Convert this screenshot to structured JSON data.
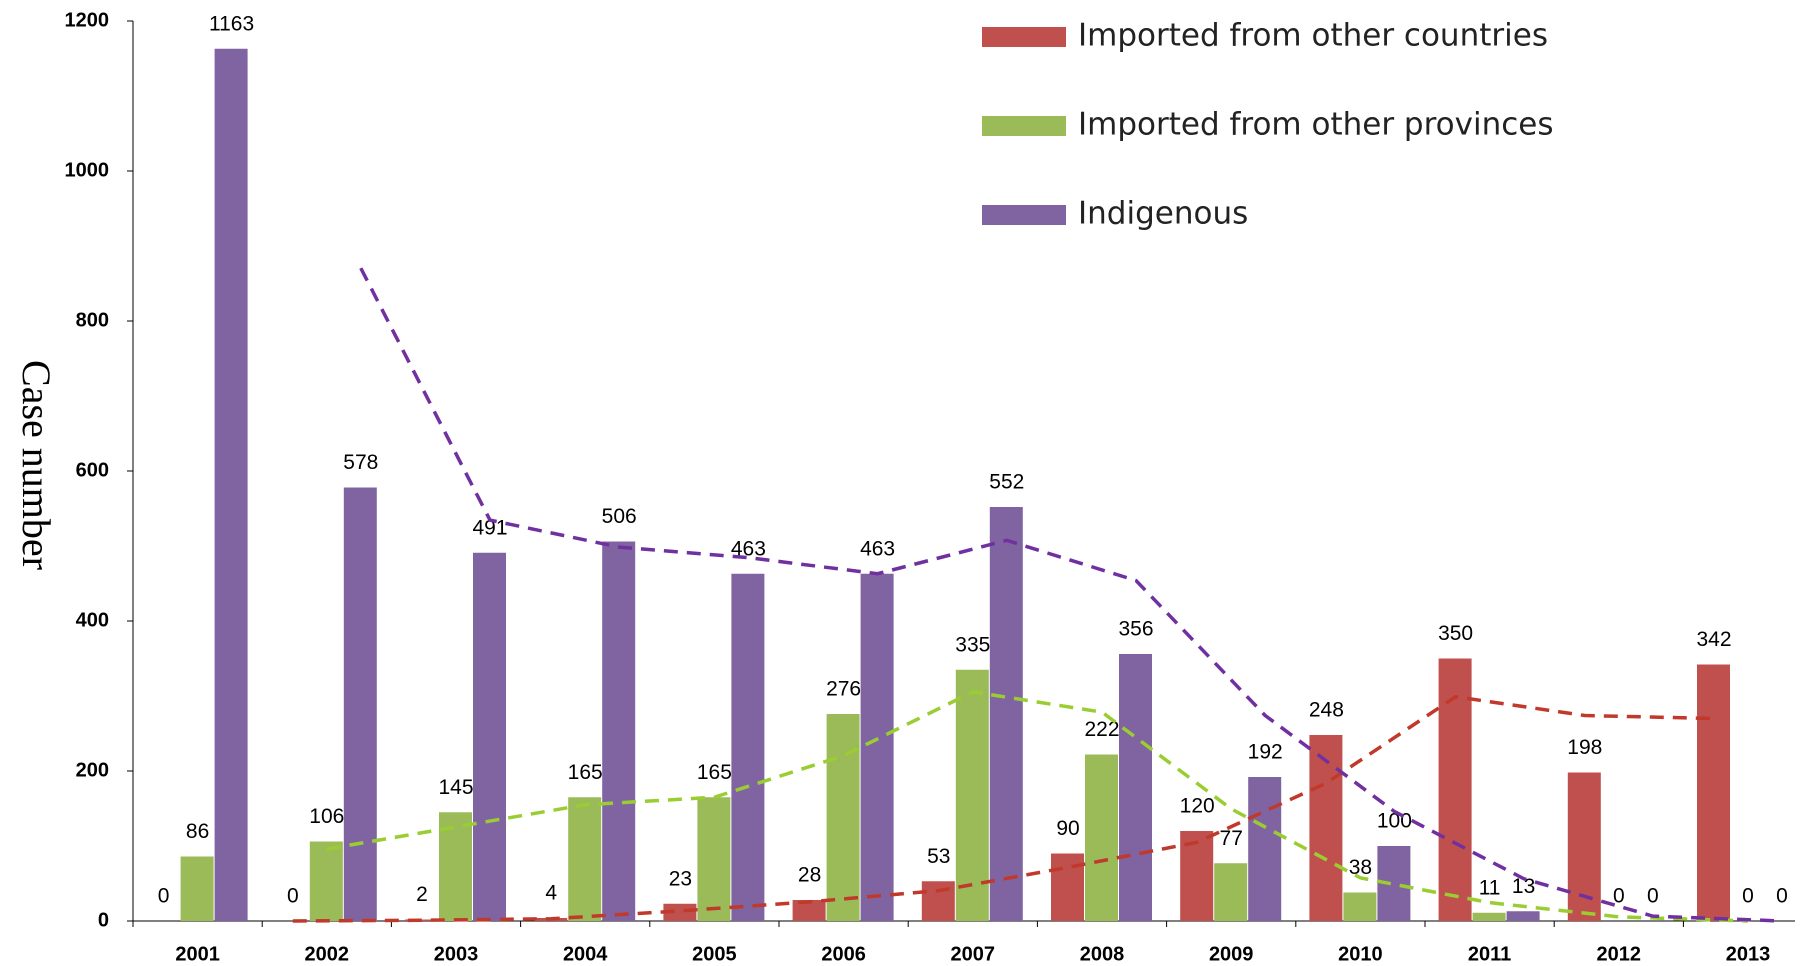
{
  "chart_data": {
    "type": "bar",
    "y_label": "Case number",
    "categories": [
      "2001",
      "2002",
      "2003",
      "2004",
      "2005",
      "2006",
      "2007",
      "2008",
      "2009",
      "2010",
      "2011",
      "2012",
      "2013"
    ],
    "series": [
      {
        "name": "Imported from other countries",
        "color": "#c0504d",
        "trend_color": "#c0392b",
        "values": [
          0,
          0,
          2,
          4,
          23,
          28,
          53,
          90,
          120,
          248,
          350,
          198,
          342
        ]
      },
      {
        "name": "Imported from other provinces",
        "color": "#9bbb59",
        "trend_color": "#9acd32",
        "values": [
          86,
          106,
          145,
          165,
          165,
          276,
          335,
          222,
          77,
          38,
          11,
          0,
          0
        ]
      },
      {
        "name": "Indigenous",
        "color": "#8064a2",
        "trend_color": "#7030a0",
        "values": [
          1163,
          578,
          491,
          506,
          463,
          463,
          552,
          356,
          192,
          100,
          13,
          0,
          0
        ]
      }
    ],
    "trendline": {
      "type": "moving-average",
      "period": 2
    },
    "ylim": [
      0,
      1200
    ],
    "yticks": [
      0,
      200,
      400,
      600,
      800,
      1000,
      1200
    ],
    "grid": false,
    "legend": "top-right"
  }
}
